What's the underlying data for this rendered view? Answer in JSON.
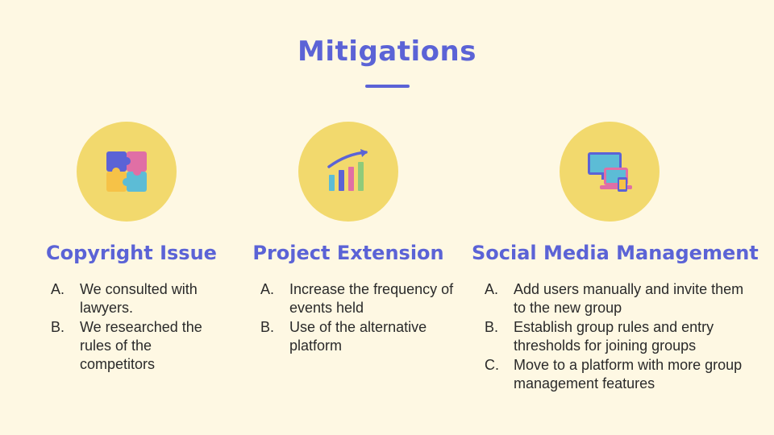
{
  "slide": {
    "title": "Mitigations",
    "accent_color": "#5b63d6",
    "circle_color": "#f2d96d",
    "background": "#fef8e3"
  },
  "columns": [
    {
      "icon": "puzzle-icon",
      "heading": "Copyright Issue",
      "items": [
        {
          "marker": "A.",
          "text": "We consulted with lawyers."
        },
        {
          "marker": "B.",
          "text": "We researched the rules of the competitors"
        }
      ]
    },
    {
      "icon": "growth-chart-icon",
      "heading": "Project Extension",
      "items": [
        {
          "marker": "A.",
          "text": "Increase the frequency of events held"
        },
        {
          "marker": "B.",
          "text": "Use of the alternative platform"
        }
      ]
    },
    {
      "icon": "devices-icon",
      "heading": "Social Media Management",
      "items": [
        {
          "marker": "A.",
          "text": "Add users manually and invite them to the new group"
        },
        {
          "marker": "B.",
          "text": "Establish group rules and entry thresholds for joining groups"
        },
        {
          "marker": "C.",
          "text": "Move to a platform with more group management features"
        }
      ]
    }
  ]
}
